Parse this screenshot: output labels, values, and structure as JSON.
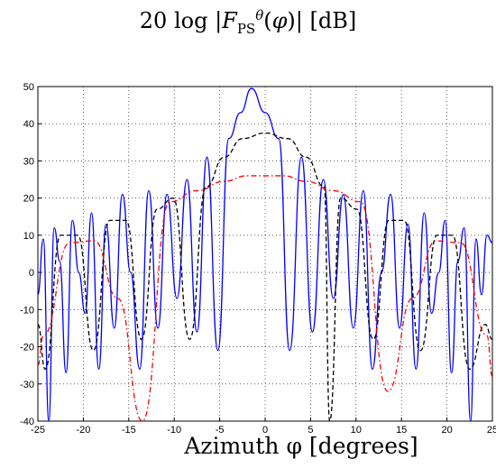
{
  "chart_data": {
    "type": "line",
    "title": "20 log |F_PS^θ(φ)| [dB]",
    "xlabel": "Azimuth φ [degrees]",
    "ylabel": "",
    "xlim": [
      -25,
      25
    ],
    "ylim": [
      -40,
      50
    ],
    "xticks": [
      -25,
      -20,
      -15,
      -10,
      -5,
      0,
      5,
      10,
      15,
      20,
      25
    ],
    "yticks": [
      50,
      40,
      30,
      20,
      10,
      0,
      -10,
      -20,
      -30,
      -40
    ],
    "grid": true,
    "series": [
      {
        "color": "#0000ff",
        "style": "solid",
        "x": [
          -25,
          -24.4,
          -23.8,
          -23.2,
          -22.6,
          -21.9,
          -21.2,
          -20.5,
          -19.8,
          -19.1,
          -18.3,
          -17.5,
          -16.6,
          -15.7,
          -14.8,
          -13.8,
          -12.8,
          -11.8,
          -10.8,
          -9.7,
          -8.6,
          -7.5,
          -6.4,
          -5.2,
          -4.0,
          -2.7,
          -1.5,
          0,
          1.5,
          2.7,
          4.0,
          5.2,
          6.4,
          7.5,
          8.6,
          9.7,
          10.8,
          11.8,
          12.8,
          13.8,
          14.8,
          15.7,
          16.6,
          17.5,
          18.3,
          19.1,
          19.8,
          20.5,
          21.2,
          21.9,
          22.6,
          23.2,
          23.8,
          24.4,
          25
        ],
        "y": [
          -6,
          9,
          -40,
          12,
          3,
          -27,
          14,
          0,
          -11,
          16,
          -26,
          13,
          -15,
          21,
          0,
          -26,
          22,
          -15,
          21,
          -7,
          25,
          -16,
          31,
          -21,
          36,
          43,
          49.5,
          43,
          36,
          -21,
          31,
          -16,
          25,
          -7,
          21,
          -15,
          22,
          -26,
          0,
          21,
          -15,
          13,
          -26,
          16,
          -11,
          0,
          14,
          -27,
          3,
          12,
          -40,
          9,
          -6,
          10,
          8
        ]
      },
      {
        "color": "#000000",
        "style": "dashed",
        "x": [
          -25,
          -24.2,
          -22.5,
          -20.6,
          -18.9,
          -17.1,
          -15.3,
          -13.6,
          -11.9,
          -10.1,
          -8.3,
          -6.5,
          -4.5,
          -2.5,
          0,
          2.5,
          4.5,
          6.5,
          7.1,
          8.3,
          10.1,
          11.9,
          13.6,
          15.3,
          17.1,
          18.9,
          20.6,
          22.5,
          24.2,
          25
        ],
        "y": [
          -14,
          -26,
          10,
          10,
          -21,
          14,
          14,
          -18,
          17,
          20,
          -18,
          23,
          31,
          36,
          37.5,
          36,
          31,
          23,
          -40,
          20,
          17,
          -18,
          14,
          14,
          -21,
          10,
          10,
          -26,
          -14,
          -18
        ]
      },
      {
        "color": "#ff0000",
        "style": "dash-dot",
        "x": [
          -25,
          -24.4,
          -21.5,
          -18.8,
          -16.2,
          -13.5,
          -10.5,
          -7.5,
          -4.5,
          -2,
          0,
          2,
          4.5,
          7.5,
          10.5,
          13.5,
          16.2,
          18.8,
          21.5,
          24.4,
          25
        ],
        "y": [
          -25,
          -17,
          8,
          8.5,
          -7,
          -40,
          19,
          22,
          24.5,
          26,
          26,
          26,
          24.5,
          22,
          19,
          -32,
          -7,
          8.5,
          8,
          -17,
          -28
        ]
      }
    ]
  }
}
